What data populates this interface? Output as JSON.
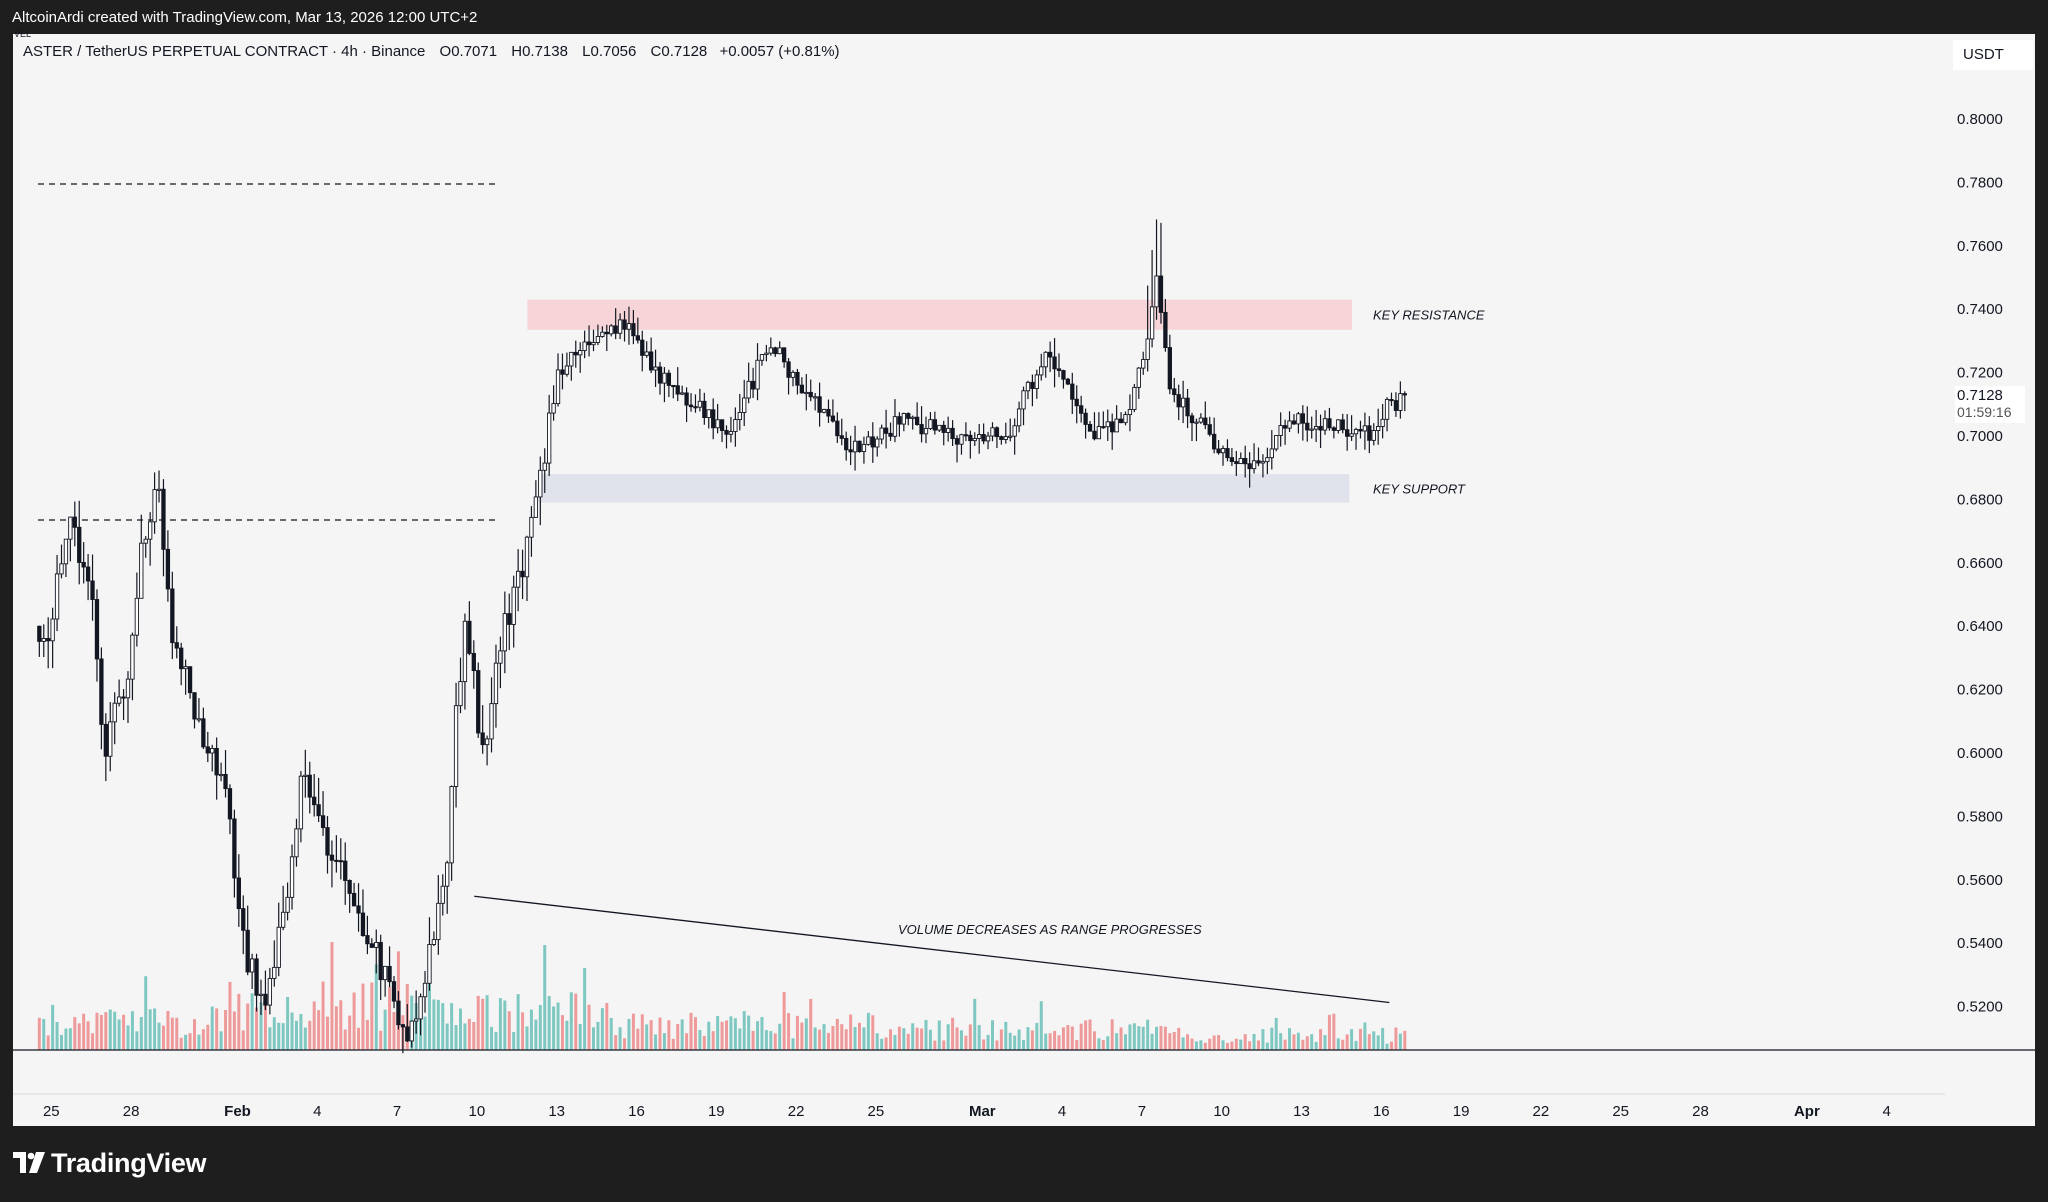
{
  "attribution": "AltcoinArdi created with TradingView.com, Mar 13, 2026 12:00 UTC+2",
  "header": {
    "symbol": "ASTER / TetherUS PERPETUAL CONTRACT · 4h · Binance",
    "open": "O0.7071",
    "high": "H0.7138",
    "low": "L0.7056",
    "close": "C0.7128",
    "change": "+0.0057 (+0.81%)",
    "volume_label": "VEL"
  },
  "currency": "USDT",
  "last_price": "0.7128",
  "countdown": "01:59:16",
  "logo_text": "TradingView",
  "colors": {
    "background": "#f5f5f5",
    "candle": "#131722",
    "volume_up": "#7fc8c2",
    "volume_down": "#ef9a9a",
    "resistance_zone": "#f7d4d7",
    "support_zone": "#e0e3eb"
  },
  "chart_data": {
    "type": "candlestick",
    "timeframe": "4h",
    "ylim": [
      0.5,
      0.82
    ],
    "y_ticks": [
      "0.8000",
      "0.7800",
      "0.7600",
      "0.7400",
      "0.7200",
      "0.7000",
      "0.6800",
      "0.6600",
      "0.6400",
      "0.6200",
      "0.6000",
      "0.5800",
      "0.5600",
      "0.5400",
      "0.5200"
    ],
    "x_ticks": [
      "25",
      "28",
      "Feb",
      "4",
      "7",
      "10",
      "13",
      "16",
      "19",
      "22",
      "25",
      "Mar",
      "4",
      "7",
      "10",
      "13",
      "16",
      "19",
      "22",
      "25",
      "28",
      "Apr",
      "4"
    ],
    "x_tick_bold": [
      "Feb",
      "Mar",
      "Apr"
    ],
    "price_path_keypoints": [
      {
        "day": -7,
        "price": 0.64
      },
      {
        "day": -6.4,
        "price": 0.672
      },
      {
        "day": -5.5,
        "price": 0.655
      },
      {
        "day": -5.0,
        "price": 0.6
      },
      {
        "day": -4.0,
        "price": 0.63
      },
      {
        "day": -3.7,
        "price": 0.66
      },
      {
        "day": -3.0,
        "price": 0.685
      },
      {
        "day": -2.5,
        "price": 0.64
      },
      {
        "day": -1.5,
        "price": 0.61
      },
      {
        "day": -0.5,
        "price": 0.59
      },
      {
        "day": 0.2,
        "price": 0.54
      },
      {
        "day": 1.0,
        "price": 0.52
      },
      {
        "day": 2.0,
        "price": 0.56
      },
      {
        "day": 2.5,
        "price": 0.598
      },
      {
        "day": 3.0,
        "price": 0.58
      },
      {
        "day": 4.0,
        "price": 0.56
      },
      {
        "day": 4.5,
        "price": 0.55
      },
      {
        "day": 5.5,
        "price": 0.53
      },
      {
        "day": 6.3,
        "price": 0.51
      },
      {
        "day": 6.8,
        "price": 0.52
      },
      {
        "day": 7.8,
        "price": 0.56
      },
      {
        "day": 8.3,
        "price": 0.62
      },
      {
        "day": 8.6,
        "price": 0.64
      },
      {
        "day": 9.2,
        "price": 0.6
      },
      {
        "day": 10.0,
        "price": 0.64
      },
      {
        "day": 10.8,
        "price": 0.66
      },
      {
        "day": 11.3,
        "price": 0.68
      },
      {
        "day": 12.0,
        "price": 0.72
      },
      {
        "day": 13.0,
        "price": 0.728
      },
      {
        "day": 14.5,
        "price": 0.735
      },
      {
        "day": 16.0,
        "price": 0.718
      },
      {
        "day": 18.5,
        "price": 0.7
      },
      {
        "day": 20.0,
        "price": 0.73
      },
      {
        "day": 21.5,
        "price": 0.712
      },
      {
        "day": 23.0,
        "price": 0.695
      },
      {
        "day": 25.0,
        "price": 0.705
      },
      {
        "day": 27.0,
        "price": 0.7
      },
      {
        "day": 29.0,
        "price": 0.702
      },
      {
        "day": 30.5,
        "price": 0.728
      },
      {
        "day": 32.0,
        "price": 0.7
      },
      {
        "day": 33.5,
        "price": 0.705
      },
      {
        "day": 34.3,
        "price": 0.735
      },
      {
        "day": 34.6,
        "price": 0.753
      },
      {
        "day": 35.0,
        "price": 0.715
      },
      {
        "day": 36.5,
        "price": 0.7
      },
      {
        "day": 38.0,
        "price": 0.688
      },
      {
        "day": 39.5,
        "price": 0.705
      },
      {
        "day": 41.5,
        "price": 0.702
      },
      {
        "day": 42.5,
        "price": 0.7
      },
      {
        "day": 43.3,
        "price": 0.71
      },
      {
        "day": 44.0,
        "price": 0.7128
      }
    ],
    "horizontal_lines": [
      {
        "price": 0.7795,
        "day_from": -7.5,
        "day_to": 9.7,
        "style": "dashed"
      },
      {
        "price": 0.6735,
        "day_from": -7.5,
        "day_to": 9.7,
        "style": "dashed"
      }
    ],
    "zones": [
      {
        "name": "resistance",
        "label": "KEY RESISTANCE",
        "price_low": 0.7335,
        "price_high": 0.743,
        "day_from": 10.9,
        "day_to": 41.9
      },
      {
        "name": "support",
        "label": "KEY SUPPORT",
        "price_low": 0.679,
        "price_high": 0.688,
        "day_from": 11.3,
        "day_to": 41.8
      }
    ],
    "trendline": {
      "label": "VOLUME DECREASES AS RANGE PROGRESSES",
      "points": [
        {
          "day": 8.9,
          "price": 0.5548
        },
        {
          "day": 43.3,
          "price": 0.5213
        }
      ]
    },
    "volume_note": "Volume bars are high in the late-January selloff and decline steadily through the range."
  }
}
